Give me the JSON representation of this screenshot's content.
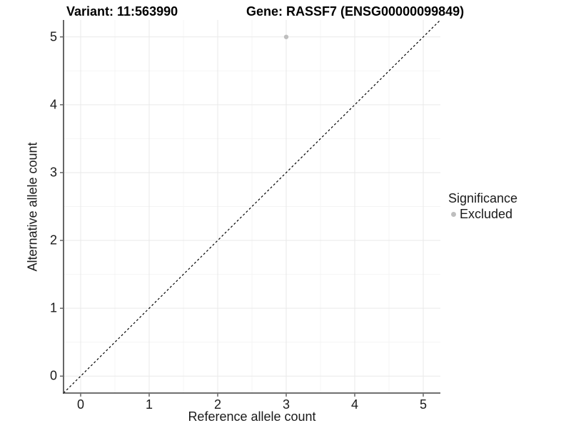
{
  "chart_data": {
    "type": "scatter",
    "title_variant": "Variant: 11:563990",
    "title_gene": "Gene: RASSF7 (ENSG00000099849)",
    "xlabel": "Reference allele count",
    "ylabel": "Alternative allele count",
    "x_ticks": [
      0,
      1,
      2,
      3,
      4,
      5
    ],
    "y_ticks": [
      0,
      1,
      2,
      3,
      4,
      5
    ],
    "xlim": [
      -0.25,
      5.25
    ],
    "ylim": [
      -0.25,
      5.25
    ],
    "grid": {
      "major": true,
      "minor": true
    },
    "points": [
      {
        "x": 3,
        "y": 5,
        "significance": "Excluded"
      }
    ],
    "reference_line": {
      "kind": "identity",
      "slope": 1,
      "intercept": 0,
      "style": "dashed"
    },
    "legend": {
      "title": "Significance",
      "position": "right",
      "items": [
        {
          "label": "Excluded",
          "color": "#bebebe",
          "marker": "circle"
        }
      ]
    },
    "colors": {
      "background": "#ffffff",
      "point": "#bebebe",
      "grid_major": "#e9e9e9",
      "grid_minor": "#f4f4f4",
      "axis_line": "#404040",
      "dashed_line": "#000000",
      "text": "#1a1a1a"
    }
  }
}
